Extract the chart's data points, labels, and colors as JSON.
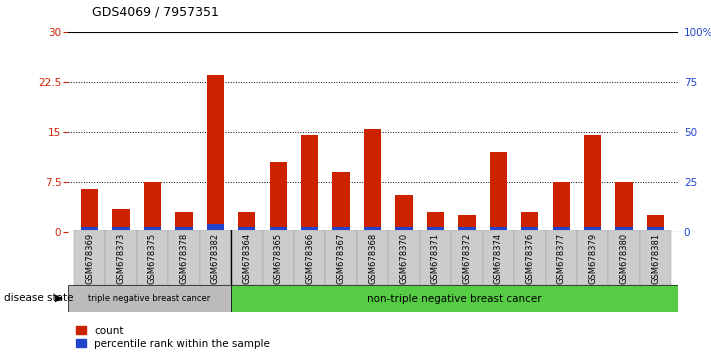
{
  "title": "GDS4069 / 7957351",
  "samples": [
    "GSM678369",
    "GSM678373",
    "GSM678375",
    "GSM678378",
    "GSM678382",
    "GSM678364",
    "GSM678365",
    "GSM678366",
    "GSM678367",
    "GSM678368",
    "GSM678370",
    "GSM678371",
    "GSM678372",
    "GSM678374",
    "GSM678376",
    "GSM678377",
    "GSM678379",
    "GSM678380",
    "GSM678381"
  ],
  "count_values": [
    6.5,
    3.5,
    7.5,
    3.0,
    23.5,
    3.0,
    10.5,
    14.5,
    9.0,
    15.5,
    5.5,
    3.0,
    2.5,
    12.0,
    3.0,
    7.5,
    14.5,
    7.5,
    2.5
  ],
  "percentile_values": [
    0.8,
    0.8,
    0.8,
    0.8,
    1.2,
    0.8,
    0.8,
    0.8,
    0.8,
    0.8,
    0.8,
    0.8,
    0.8,
    0.8,
    0.8,
    0.8,
    0.8,
    0.8,
    0.8
  ],
  "group1_count": 5,
  "group1_label": "triple negative breast cancer",
  "group2_label": "non-triple negative breast cancer",
  "group1_color": "#bbbbbb",
  "group2_color": "#55cc44",
  "bar_color": "#cc2200",
  "percentile_color": "#2244cc",
  "ylim_left": [
    0,
    30
  ],
  "ylim_right": [
    0,
    100
  ],
  "yticks_left": [
    0,
    7.5,
    15,
    22.5,
    30
  ],
  "yticks_right": [
    0,
    25,
    50,
    75,
    100
  ],
  "ytick_labels_left": [
    "0",
    "7.5",
    "15",
    "22.5",
    "30"
  ],
  "ytick_labels_right": [
    "0",
    "25",
    "50",
    "75",
    "100%"
  ],
  "disease_state_label": "disease state",
  "legend_count_label": "count",
  "legend_percentile_label": "percentile rank within the sample",
  "bar_width": 0.55,
  "bg_color": "#ffffff",
  "tick_bg_color": "#cccccc"
}
